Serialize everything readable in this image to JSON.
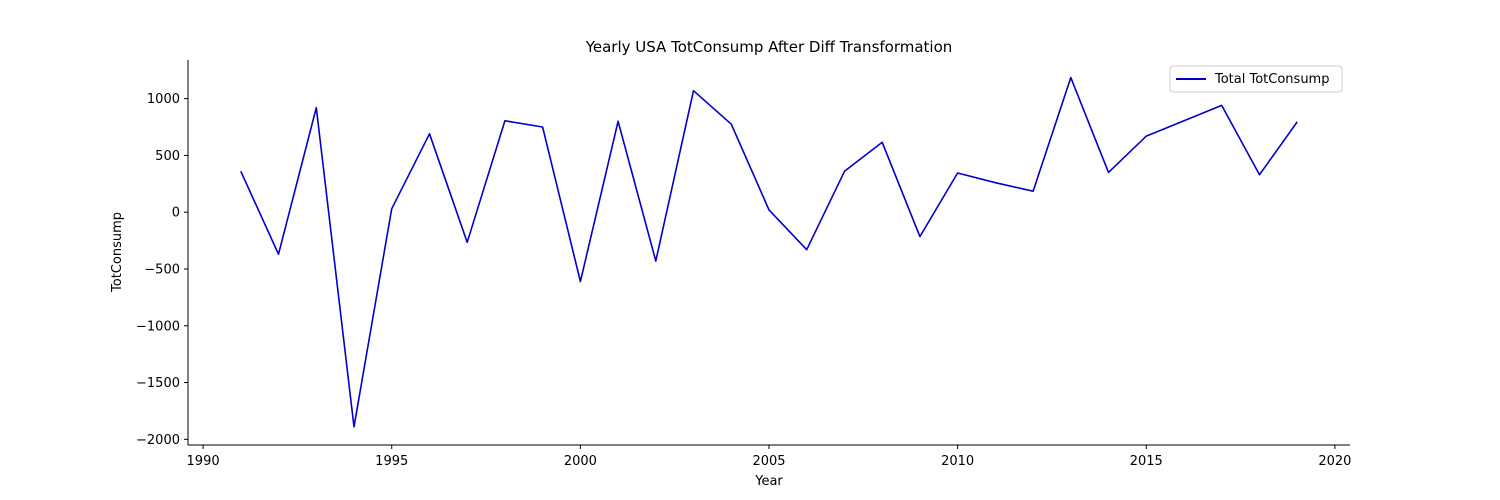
{
  "chart_data": {
    "type": "line",
    "title": "Yearly USA TotConsump After Diff Transformation",
    "xlabel": "Year",
    "ylabel": "TotConsump",
    "xlim": [
      1989.6,
      2020.4
    ],
    "ylim": [
      -2050,
      1340
    ],
    "xticks": [
      1990,
      1995,
      2000,
      2005,
      2010,
      2015,
      2020
    ],
    "yticks": [
      -2000,
      -1500,
      -1000,
      -500,
      0,
      500,
      1000
    ],
    "grid": false,
    "legend_position": "top-right",
    "series": [
      {
        "name": "Total TotConsump",
        "color": "#0000cc",
        "x": [
          1991,
          1992,
          1993,
          1994,
          1995,
          1996,
          1997,
          1998,
          1999,
          2000,
          2001,
          2002,
          2003,
          2004,
          2005,
          2006,
          2007,
          2008,
          2009,
          2010,
          2011,
          2012,
          2013,
          2014,
          2015,
          2016,
          2017,
          2018,
          2019
        ],
        "y": [
          360,
          -370,
          920,
          -1890,
          30,
          690,
          -265,
          805,
          750,
          -610,
          800,
          -430,
          1070,
          775,
          20,
          -330,
          360,
          615,
          -215,
          345,
          260,
          185,
          1185,
          350,
          670,
          805,
          940,
          330,
          795
        ]
      }
    ]
  }
}
